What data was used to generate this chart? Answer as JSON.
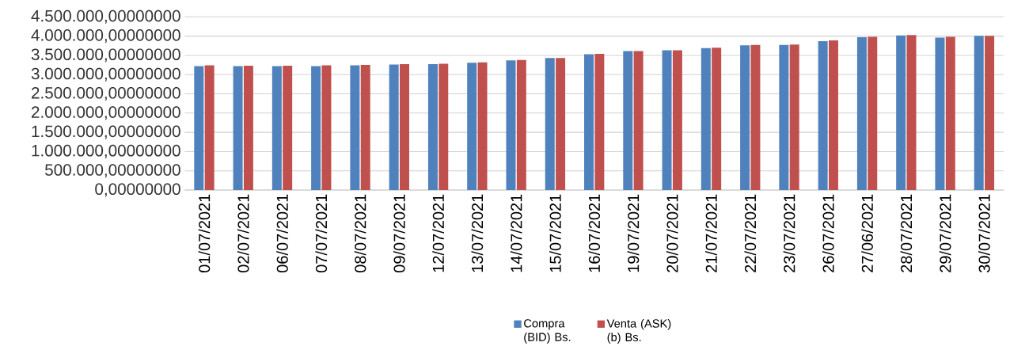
{
  "chart_data": {
    "type": "bar",
    "categories": [
      "01/07/2021",
      "02/07/2021",
      "06/07/2021",
      "07/07/2021",
      "08/07/2021",
      "09/07/2021",
      "12/07/2021",
      "13/07/2021",
      "14/07/2021",
      "15/07/2021",
      "16/07/2021",
      "19/07/2021",
      "20/07/2021",
      "21/07/2021",
      "22/07/2021",
      "23/07/2021",
      "26/07/2021",
      "27/06/2021",
      "28/07/2021",
      "29/07/2021",
      "30/07/2021"
    ],
    "series": [
      {
        "name": "Compra (BID) Bs.",
        "color": "#4f81bd",
        "values": [
          3220000,
          3220000,
          3220000,
          3220000,
          3240000,
          3260000,
          3270000,
          3310000,
          3370000,
          3430000,
          3530000,
          3610000,
          3630000,
          3690000,
          3760000,
          3770000,
          3870000,
          3970000,
          4020000,
          3960000,
          4010000
        ]
      },
      {
        "name": "Venta (ASK) (b) Bs.",
        "color": "#c0504d",
        "values": [
          3240000,
          3230000,
          3230000,
          3240000,
          3250000,
          3270000,
          3280000,
          3320000,
          3380000,
          3430000,
          3540000,
          3610000,
          3630000,
          3700000,
          3770000,
          3780000,
          3890000,
          3980000,
          4030000,
          3980000,
          4010000
        ]
      }
    ],
    "ylim": [
      0,
      4500000
    ],
    "yticks": [
      {
        "value": 0,
        "label": "0,00000000"
      },
      {
        "value": 500000,
        "label": "500.000,00000000"
      },
      {
        "value": 1000000,
        "label": "1.000.000,00000000"
      },
      {
        "value": 1500000,
        "label": "1.500.000,00000000"
      },
      {
        "value": 2000000,
        "label": "2.000.000,00000000"
      },
      {
        "value": 2500000,
        "label": "2.500.000,00000000"
      },
      {
        "value": 3000000,
        "label": "3.000.000,00000000"
      },
      {
        "value": 3500000,
        "label": "3.500.000,00000000"
      },
      {
        "value": 4000000,
        "label": "4.000.000,00000000"
      },
      {
        "value": 4500000,
        "label": "4.500.000,00000000"
      }
    ],
    "grid": "y",
    "legend": "bottom"
  }
}
